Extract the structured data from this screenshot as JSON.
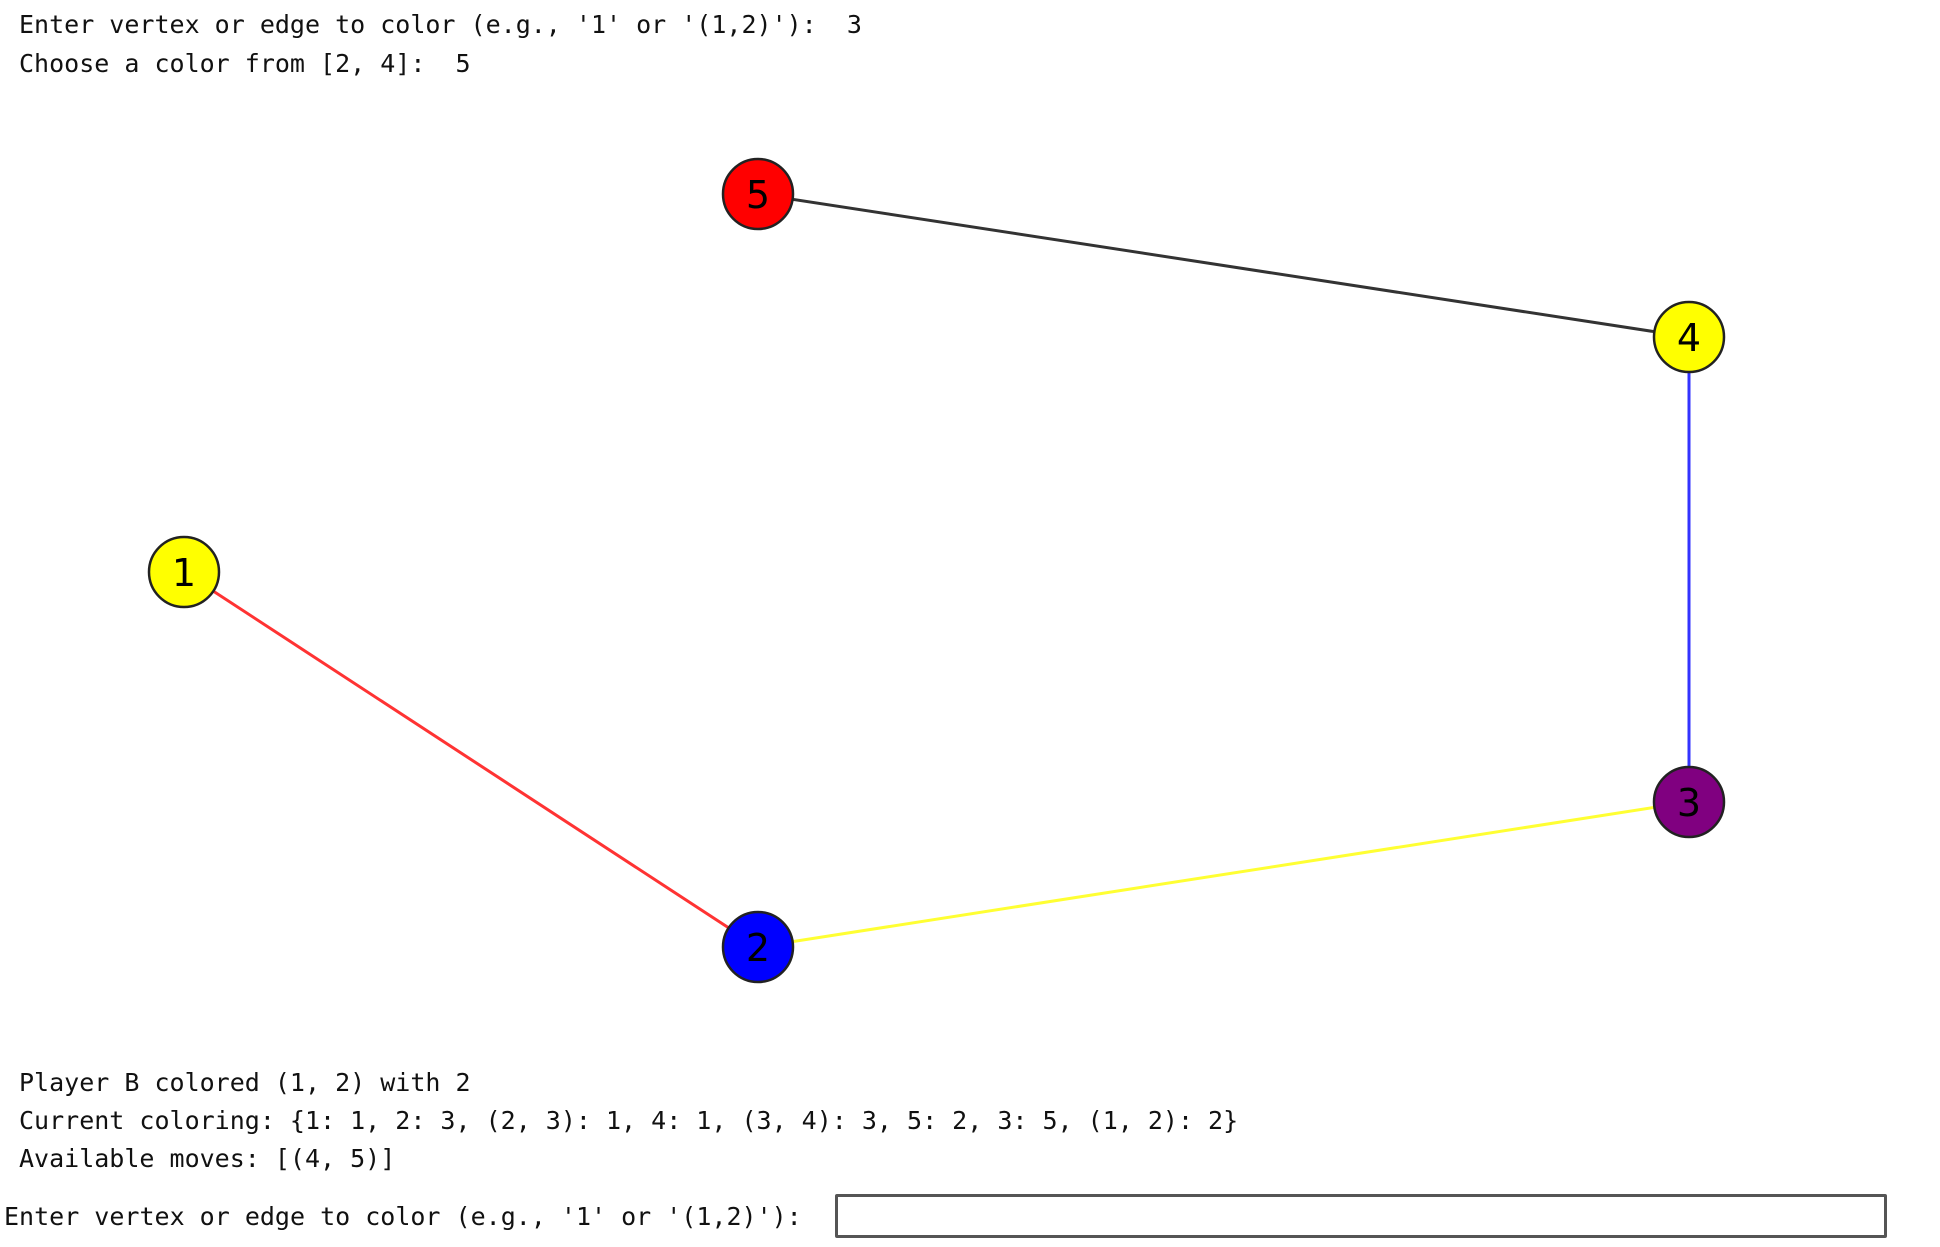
{
  "console": {
    "line1": "Enter vertex or edge to color (e.g., '1' or '(1,2)'):  3",
    "line2": "Choose a color from [2, 4]:  5",
    "line3": "Player B colored (1, 2) with 2",
    "line4": "Current coloring: {1: 1, 2: 3, (2, 3): 1, 4: 1, (3, 4): 3, 5: 2, 3: 5, (1, 2): 2}",
    "line5": "Available moves: [(4, 5)]"
  },
  "prompt": {
    "label": "Enter vertex or edge to color (e.g., '1' or '(1,2)'): ",
    "value": ""
  },
  "graph": {
    "nodes": [
      {
        "id": "1",
        "label": "1",
        "color": "#ffff00"
      },
      {
        "id": "2",
        "label": "2",
        "color": "#0000ff"
      },
      {
        "id": "3",
        "label": "3",
        "color": "#800080"
      },
      {
        "id": "4",
        "label": "4",
        "color": "#ffff00"
      },
      {
        "id": "5",
        "label": "5",
        "color": "#ff0000"
      }
    ],
    "edges": [
      {
        "from": "1",
        "to": "2",
        "color": "#ff3333"
      },
      {
        "from": "2",
        "to": "3",
        "color": "#ffff33"
      },
      {
        "from": "3",
        "to": "4",
        "color": "#3333ff"
      },
      {
        "from": "4",
        "to": "5",
        "color": "#333333"
      }
    ]
  }
}
